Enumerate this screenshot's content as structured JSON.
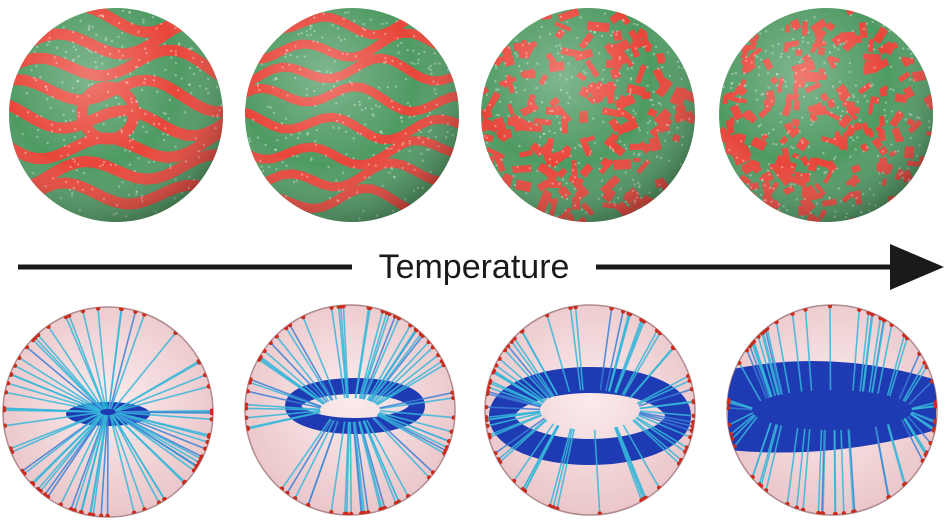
{
  "arrow": {
    "label": "Temperature",
    "color": "#1a1a1a"
  },
  "colors": {
    "patch_red": "#e8463a",
    "patch_green": "#4f9a63",
    "shell_pink": "#f4d6d8",
    "shell_edge": "#b08a8e",
    "vortex_blue": "#1f3bb3",
    "streamline_cyan": "#35b6d9",
    "tip_red": "#cc2a1a"
  },
  "panels": {
    "top_row": [
      {
        "id": "pattern-1",
        "style": "swirl-stripes"
      },
      {
        "id": "pattern-2",
        "style": "labyrinth-stripes"
      },
      {
        "id": "pattern-3",
        "style": "mixed-domains"
      },
      {
        "id": "pattern-4",
        "style": "fragmented-domains"
      }
    ],
    "bottom_row": [
      {
        "id": "field-1",
        "style": "radial-burst"
      },
      {
        "id": "field-2",
        "style": "small-ring"
      },
      {
        "id": "field-3",
        "style": "open-ring"
      },
      {
        "id": "field-4",
        "style": "equatorial-band"
      }
    ]
  }
}
